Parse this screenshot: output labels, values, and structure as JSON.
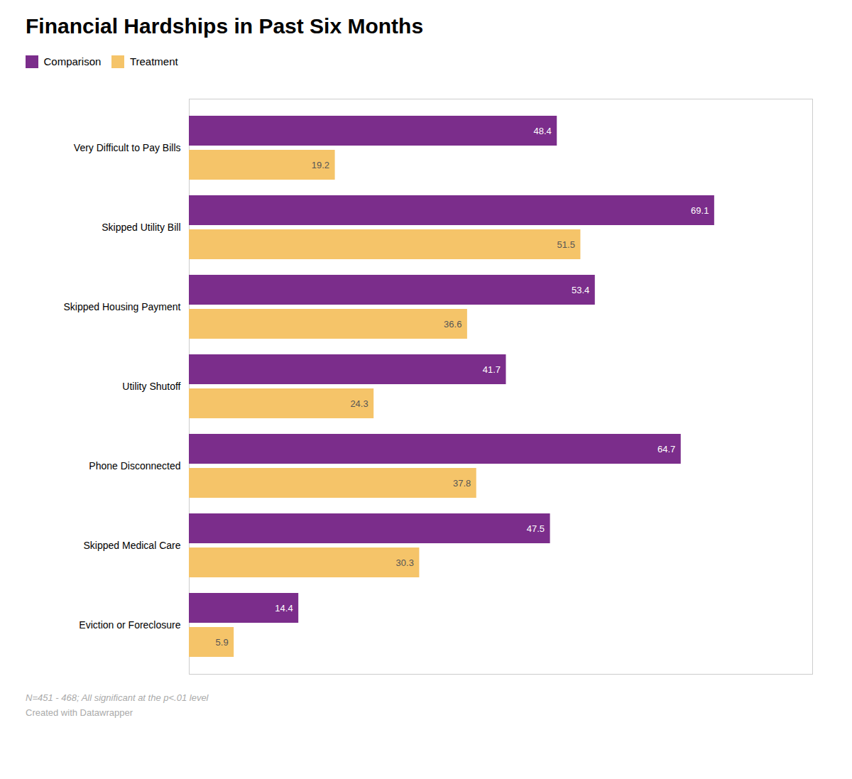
{
  "chart_data": {
    "type": "bar",
    "orientation": "horizontal",
    "title": "Financial Hardships in Past Six Months",
    "categories": [
      "Very Difficult to Pay Bills",
      "Skipped Utility Bill",
      "Skipped Housing Payment",
      "Utility Shutoff",
      "Phone Disconnected",
      "Skipped Medical Care",
      "Eviction or Foreclosure"
    ],
    "series": [
      {
        "name": "Comparison",
        "color": "#7B2D8B",
        "values": [
          48.4,
          69.1,
          53.4,
          41.7,
          64.7,
          47.5,
          14.4
        ]
      },
      {
        "name": "Treatment",
        "color": "#F5C469",
        "values": [
          19.2,
          51.5,
          36.6,
          24.3,
          37.8,
          30.3,
          5.9
        ]
      }
    ],
    "xlim": [
      0,
      82
    ],
    "tick_labels": "y",
    "data_labels": true,
    "legend": "upper left",
    "annotations": [
      "N=451 - 468; All significant at the p<.01 level",
      "Created with Datawrapper"
    ]
  }
}
